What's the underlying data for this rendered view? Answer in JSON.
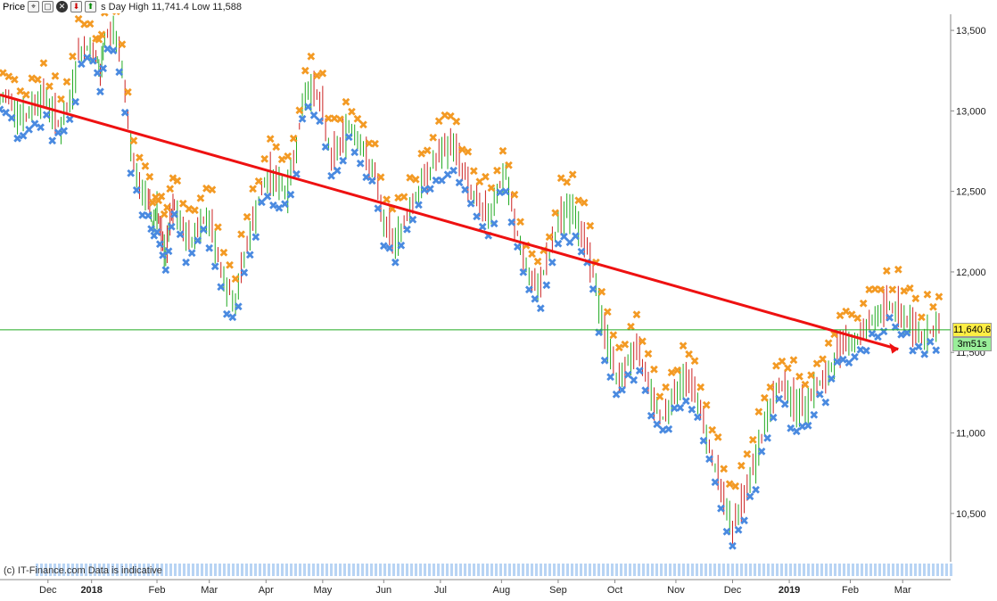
{
  "toolbar": {
    "title": "Price",
    "info_text": "s Day High 11,741.4 Low 11,588",
    "icons": [
      "crosshair-icon",
      "window-icon",
      "close-icon",
      "sell-icon",
      "buy-icon"
    ]
  },
  "bottom_note": "(c) IT-Finance.com Data is indicative",
  "chart_data": {
    "type": "line",
    "title": "",
    "xlabel": "",
    "ylabel": "",
    "ylim": [
      10200,
      13600
    ],
    "y_ticks": [
      10500,
      11000,
      11500,
      12000,
      12500,
      13000,
      13500
    ],
    "y_tick_labels": [
      "10,500",
      "11,000",
      "11,500",
      "12,000",
      "12,500",
      "13,000",
      "13,500"
    ],
    "x_tick_labels": [
      {
        "label": "Dec",
        "t": 0.11
      },
      {
        "label": "2018",
        "t": 0.21,
        "year": true
      },
      {
        "label": "Feb",
        "t": 0.36
      },
      {
        "label": "Mar",
        "t": 0.48
      },
      {
        "label": "Apr",
        "t": 0.61
      },
      {
        "label": "May",
        "t": 0.74
      },
      {
        "label": "Jun",
        "t": 0.88
      },
      {
        "label": "Jul",
        "t": 1.01
      },
      {
        "label": "Aug",
        "t": 1.15
      },
      {
        "label": "Sep",
        "t": 1.28
      },
      {
        "label": "Oct",
        "t": 1.41
      },
      {
        "label": "Nov",
        "t": 1.55
      },
      {
        "label": "Dec",
        "t": 1.68
      },
      {
        "label": "2019",
        "t": 1.81,
        "year": true
      },
      {
        "label": "Feb",
        "t": 1.95
      },
      {
        "label": "Mar",
        "t": 2.07
      }
    ],
    "x_range": [
      0,
      2.18
    ],
    "series": [
      {
        "name": "",
        "x": [
          0.0,
          0.02,
          0.04,
          0.06,
          0.08,
          0.1,
          0.12,
          0.14,
          0.16,
          0.18,
          0.2,
          0.22,
          0.23,
          0.24,
          0.26,
          0.28,
          0.3,
          0.32,
          0.34,
          0.35,
          0.36,
          0.37,
          0.38,
          0.39,
          0.4,
          0.42,
          0.44,
          0.46,
          0.48,
          0.5,
          0.52,
          0.54,
          0.56,
          0.58,
          0.6,
          0.62,
          0.64,
          0.66,
          0.68,
          0.7,
          0.72,
          0.74,
          0.76,
          0.78,
          0.8,
          0.82,
          0.84,
          0.86,
          0.88,
          0.9,
          0.92,
          0.94,
          0.96,
          0.98,
          1.0,
          1.02,
          1.04,
          1.06,
          1.08,
          1.1,
          1.12,
          1.14,
          1.16,
          1.18,
          1.2,
          1.22,
          1.24,
          1.26,
          1.28,
          1.3,
          1.32,
          1.34,
          1.36,
          1.38,
          1.4,
          1.42,
          1.44,
          1.46,
          1.48,
          1.5,
          1.52,
          1.54,
          1.56,
          1.58,
          1.6,
          1.62,
          1.64,
          1.66,
          1.68,
          1.7,
          1.72,
          1.74,
          1.76,
          1.78,
          1.8,
          1.82,
          1.84,
          1.86,
          1.88,
          1.9,
          1.92,
          1.94,
          1.96,
          1.98,
          2.0,
          2.02,
          2.04,
          2.06,
          2.08,
          2.1,
          2.12,
          2.14,
          2.16
        ],
        "values": [
          13050,
          13100,
          13000,
          12950,
          13050,
          13100,
          13000,
          12900,
          13050,
          13350,
          13400,
          13350,
          13200,
          13450,
          13500,
          13300,
          12800,
          12500,
          12450,
          12300,
          12400,
          12200,
          12100,
          12300,
          12400,
          12250,
          12200,
          12300,
          12350,
          12100,
          11900,
          11800,
          12100,
          12300,
          12500,
          12600,
          12550,
          12500,
          12800,
          13100,
          13150,
          13000,
          12700,
          12800,
          12900,
          12850,
          12700,
          12600,
          12300,
          12200,
          12250,
          12400,
          12500,
          12600,
          12700,
          12750,
          12800,
          12650,
          12500,
          12400,
          12350,
          12500,
          12600,
          12300,
          12100,
          11900,
          11950,
          12100,
          12300,
          12400,
          12350,
          12200,
          12000,
          11700,
          11500,
          11300,
          11450,
          11500,
          11400,
          11200,
          11100,
          11200,
          11300,
          11350,
          11200,
          11000,
          10800,
          10600,
          10400,
          10550,
          10700,
          10900,
          11100,
          11250,
          11300,
          11200,
          11150,
          11250,
          11300,
          11350,
          11500,
          11600,
          11550,
          11650,
          11700,
          11750,
          11800,
          11750,
          11700,
          11650,
          11600,
          11650,
          11640
        ]
      },
      {
        "name": "",
        "x": [
          0.0,
          2.06
        ],
        "values": [
          13100,
          11520
        ]
      }
    ],
    "horizontal_line": 11640.6,
    "last_price_label": "11,640.6",
    "countdown_label": "3m51s",
    "colors": {
      "bullish_marker": "#f39a24",
      "bearish_marker": "#4a8ae0",
      "trend_line": "#ee1111",
      "horizontal_line": "#22aa22",
      "candle_up": "#22aa22",
      "candle_down": "#cc2222",
      "price_tag_bg": "#ffee44",
      "countdown_bg": "#99ee99"
    }
  }
}
